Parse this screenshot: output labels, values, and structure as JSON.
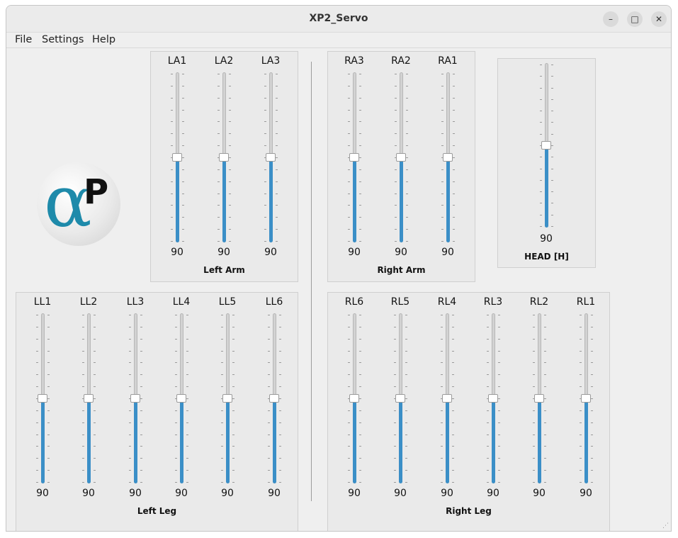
{
  "window": {
    "title": "XP2_Servo"
  },
  "menubar": {
    "items": [
      "File",
      "Settings",
      "Help"
    ]
  },
  "logo": {
    "alpha": "α",
    "p": "P"
  },
  "groups": {
    "left_arm": {
      "title": "Left Arm",
      "servos": [
        {
          "label": "LA1",
          "value": 90
        },
        {
          "label": "LA2",
          "value": 90
        },
        {
          "label": "LA3",
          "value": 90
        }
      ]
    },
    "right_arm": {
      "title": "Right Arm",
      "servos": [
        {
          "label": "RA3",
          "value": 90
        },
        {
          "label": "RA2",
          "value": 90
        },
        {
          "label": "RA1",
          "value": 90
        }
      ]
    },
    "head": {
      "title": "HEAD [H]",
      "servos": [
        {
          "label": "",
          "value": 90
        }
      ]
    },
    "left_leg": {
      "title": "Left Leg",
      "servos": [
        {
          "label": "LL1",
          "value": 90
        },
        {
          "label": "LL2",
          "value": 90
        },
        {
          "label": "LL3",
          "value": 90
        },
        {
          "label": "LL4",
          "value": 90
        },
        {
          "label": "LL5",
          "value": 90
        },
        {
          "label": "LL6",
          "value": 90
        }
      ]
    },
    "right_leg": {
      "title": "Right Leg",
      "servos": [
        {
          "label": "RL6",
          "value": 90
        },
        {
          "label": "RL5",
          "value": 90
        },
        {
          "label": "RL4",
          "value": 90
        },
        {
          "label": "RL3",
          "value": 90
        },
        {
          "label": "RL2",
          "value": 90
        },
        {
          "label": "RL1",
          "value": 90
        }
      ]
    }
  },
  "slider_range": {
    "min": 0,
    "max": 180
  },
  "colors": {
    "slider_fill": "#3b8fc7",
    "logo_accent": "#1e8aaa"
  }
}
